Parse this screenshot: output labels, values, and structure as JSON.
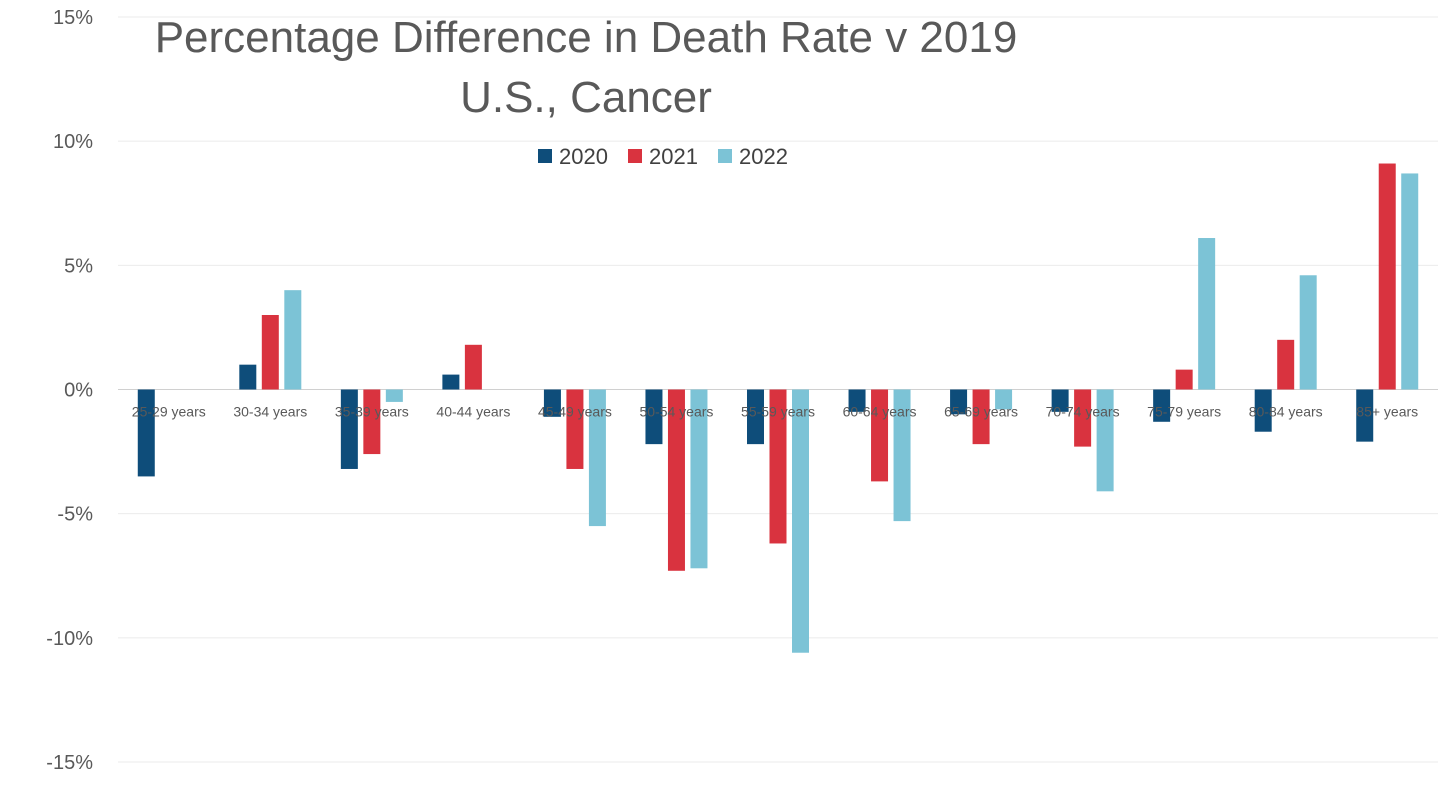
{
  "chart_data": {
    "type": "bar",
    "title_lines": [
      "Percentage Difference in Death Rate v 2019",
      "U.S., Cancer"
    ],
    "xlabel": "",
    "ylabel": "",
    "ylim": [
      -15,
      15
    ],
    "yticks": [
      15,
      10,
      5,
      0,
      -5,
      -10,
      -15
    ],
    "ytick_labels": [
      "15%",
      "10%",
      "5%",
      "0%",
      "-5%",
      "-10%",
      "-15%"
    ],
    "grid": true,
    "legend_position": "top-center",
    "categories": [
      "25-29 years",
      "30-34 years",
      "35-39 years",
      "40-44 years",
      "45-49 years",
      "50-54 years",
      "55-59 years",
      "60-64 years",
      "65-69 years",
      "70-74 years",
      "75-79 years",
      "80-84 years",
      "85+ years"
    ],
    "series": [
      {
        "name": "2020",
        "color": "#0E4D7A",
        "values": [
          -3.5,
          1.0,
          -3.2,
          0.6,
          -1.1,
          -2.2,
          -2.2,
          -0.9,
          -1.0,
          -0.9,
          -1.3,
          -1.7,
          -2.1
        ]
      },
      {
        "name": "2021",
        "color": "#D9333F",
        "values": [
          null,
          3.0,
          -2.6,
          1.8,
          -3.2,
          -7.3,
          -6.2,
          -3.7,
          -2.2,
          -2.3,
          0.8,
          2.0,
          9.1
        ]
      },
      {
        "name": "2022",
        "color": "#7CC3D6",
        "values": [
          null,
          4.0,
          -0.5,
          null,
          -5.5,
          -7.2,
          -10.6,
          -5.3,
          -0.8,
          -4.1,
          6.1,
          4.6,
          8.7
        ]
      }
    ]
  }
}
